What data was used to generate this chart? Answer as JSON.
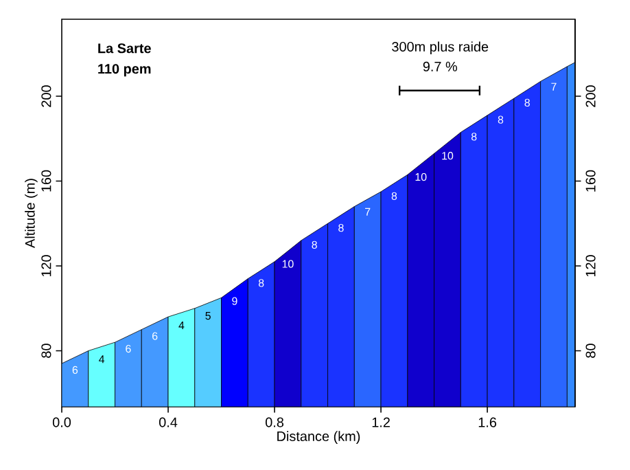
{
  "chart_data": {
    "type": "area",
    "title": "La Sarte",
    "subtitle": "110 pem",
    "xlabel": "Distance (km)",
    "ylabel": "Altitude (m)",
    "series": [
      {
        "color": "#4499ff",
        "x": [
          0,
          0.1
        ],
        "values": [
          74,
          80
        ]
      },
      {
        "color": "#66ffff",
        "x": [
          0.1,
          0.2
        ],
        "values": [
          80,
          84
        ]
      },
      {
        "color": "#4499ff",
        "x": [
          0.2,
          0.3,
          0.4
        ],
        "values": [
          84,
          90,
          96
        ]
      },
      {
        "color": "#66ffff",
        "x": [
          0.4,
          0.5
        ],
        "values": [
          96,
          100
        ]
      },
      {
        "color": "#55ccff",
        "x": [
          0.5,
          0.6
        ],
        "values": [
          100,
          105
        ]
      },
      {
        "color": "#0000ff",
        "x": [
          0.6,
          0.7
        ],
        "values": [
          105,
          114
        ]
      },
      {
        "color": "#1a33ff",
        "x": [
          0.7,
          0.8
        ],
        "values": [
          114,
          122
        ]
      },
      {
        "color": "#1000cc",
        "x": [
          0.8,
          0.9
        ],
        "values": [
          122,
          132
        ]
      },
      {
        "color": "#1a33ff",
        "x": [
          0.9,
          1.0,
          1.1
        ],
        "values": [
          132,
          140,
          148
        ]
      },
      {
        "color": "#2a66ff",
        "x": [
          1.1,
          1.2
        ],
        "values": [
          148,
          155
        ]
      },
      {
        "color": "#1a33ff",
        "x": [
          1.2,
          1.3
        ],
        "values": [
          155,
          163
        ]
      },
      {
        "color": "#1000cc",
        "x": [
          1.3,
          1.4,
          1.5
        ],
        "values": [
          163,
          173,
          183
        ]
      },
      {
        "color": "#1a33ff",
        "x": [
          1.5,
          1.6,
          1.7,
          1.8
        ],
        "values": [
          183,
          191,
          199,
          207
        ]
      },
      {
        "color": "#2a66ff",
        "x": [
          1.8,
          1.9
        ],
        "values": [
          207,
          214
        ]
      },
      {
        "color": "#3388ff",
        "x": [
          1.9,
          1.93
        ],
        "values": [
          214,
          216
        ]
      }
    ],
    "annotations": [
      "6",
      "4",
      "6",
      "6",
      "4",
      "5",
      "9",
      "8",
      "10",
      "8",
      "8",
      "7",
      "8",
      "10",
      "10",
      "8",
      "8",
      "8",
      "7",
      "300m plus raide",
      "9.7 %"
    ],
    "xlim": [
      0,
      1.93
    ],
    "ylim": [
      53.6,
      236.3
    ],
    "y2lim": [
      53.6,
      236.3
    ],
    "xticks": [
      {
        "value": 0,
        "label": "0.0"
      },
      0.4,
      0.8,
      1.2,
      1.6
    ],
    "yticks": [
      80,
      120,
      160,
      200
    ],
    "y2ticks": [
      80,
      120,
      160,
      200
    ],
    "grid": false,
    "marker": "none"
  }
}
